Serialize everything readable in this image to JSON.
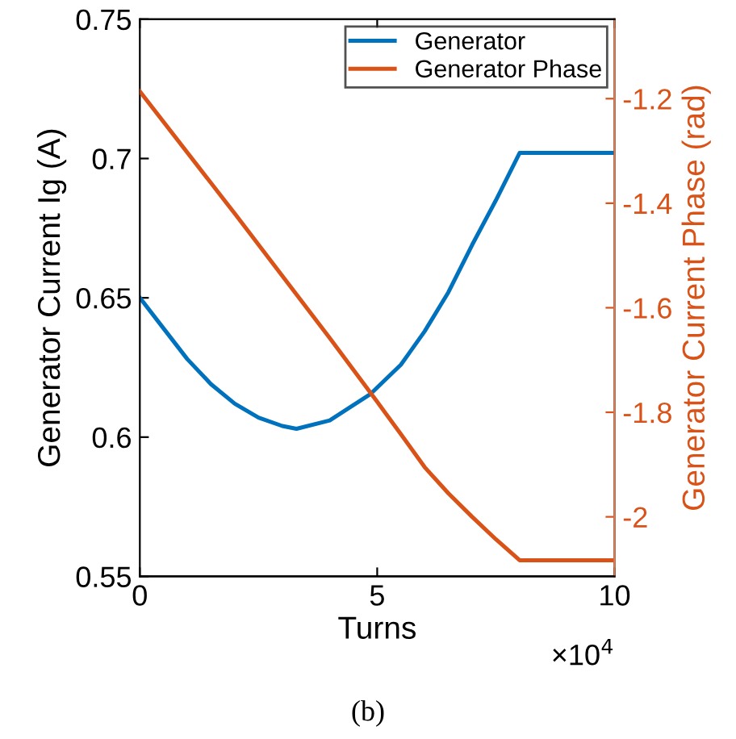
{
  "chart_data": {
    "type": "line",
    "xlabel": "Turns",
    "ylabel": "Generator Current Ig (A)",
    "y2label": "Generator Current Phase (rad)",
    "xlim": [
      0,
      10
    ],
    "xticks": [
      0,
      5,
      10
    ],
    "ylim": [
      0.55,
      0.75
    ],
    "yticks": [
      0.55,
      0.6,
      0.65,
      0.7,
      0.75
    ],
    "y2lim": [
      -2.114,
      -1.048
    ],
    "y2ticks": [
      -2,
      -1.8,
      -1.6,
      -1.4,
      -1.2
    ],
    "series": [
      {
        "name": "Generator",
        "color": "#0072bd",
        "x": [
          0,
          0.5,
          1,
          1.5,
          2,
          2.5,
          3,
          3.3,
          4,
          4.86,
          5.5,
          6,
          6.5,
          7,
          7.5,
          8,
          10
        ],
        "values": [
          0.65,
          0.639,
          0.628,
          0.619,
          0.612,
          0.607,
          0.604,
          0.603,
          0.606,
          0.6155,
          0.626,
          0.638,
          0.652,
          0.669,
          0.685,
          0.702,
          0.702
        ]
      },
      {
        "name": "Generator Phase",
        "color": "#d95319",
        "axis": "y2",
        "x": [
          0,
          2,
          4,
          5,
          5.5,
          6,
          6.5,
          7,
          7.5,
          8,
          10
        ],
        "values": [
          -1.186,
          -1.42,
          -1.658,
          -1.78,
          -1.842,
          -1.905,
          -1.955,
          -2.0,
          -2.043,
          -2.083,
          -2.083
        ]
      }
    ],
    "legend": "top right",
    "grid": false,
    "marker": "none",
    "line_style": "solid",
    "annotations": [
      "×10$^{4}$",
      "(b)"
    ]
  }
}
